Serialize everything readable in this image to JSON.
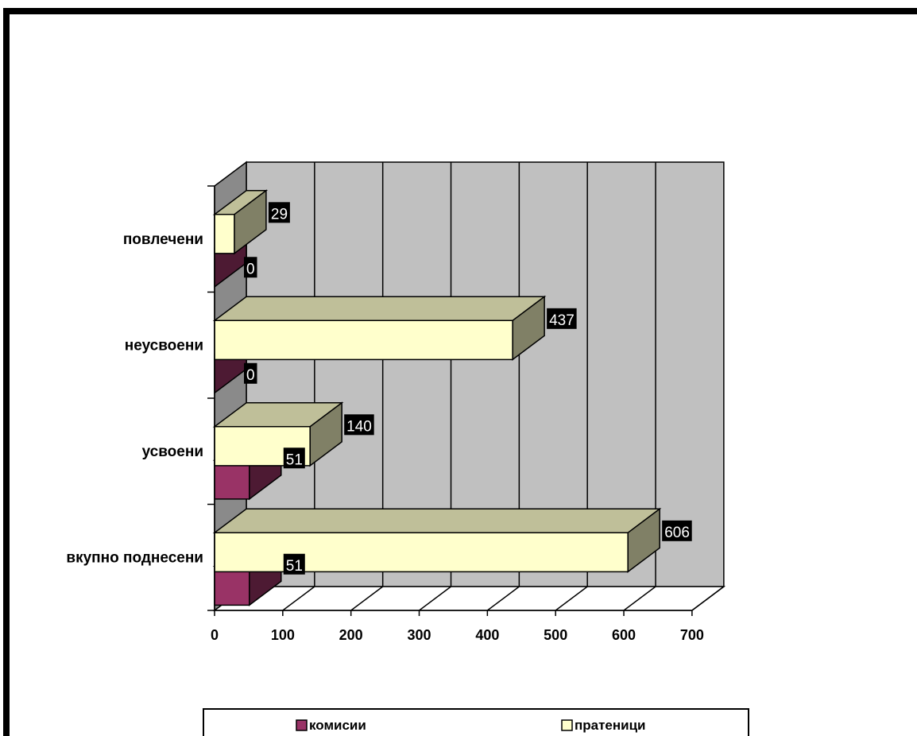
{
  "chart_data": {
    "type": "bar",
    "orientation": "horizontal",
    "three_d": true,
    "title": "",
    "xlabel": "",
    "ylabel": "",
    "categories": [
      "вкупно поднесени",
      "усвоени",
      "неусвоени",
      "повлечени"
    ],
    "series": [
      {
        "name": "комисии",
        "values": [
          51,
          51,
          0,
          0
        ],
        "color": "#993366"
      },
      {
        "name": "пратеници",
        "values": [
          606,
          140,
          437,
          29
        ],
        "color": "#FFFFCC"
      }
    ],
    "xlim": [
      0,
      700
    ],
    "xticks": [
      "0",
      "100",
      "200",
      "300",
      "400",
      "500",
      "600",
      "700"
    ],
    "grid": true,
    "wall_color": "#C0C0C0",
    "data_labels": true,
    "legend": {
      "position": "bottom",
      "entries": [
        "комисии",
        "пратеници"
      ]
    }
  }
}
